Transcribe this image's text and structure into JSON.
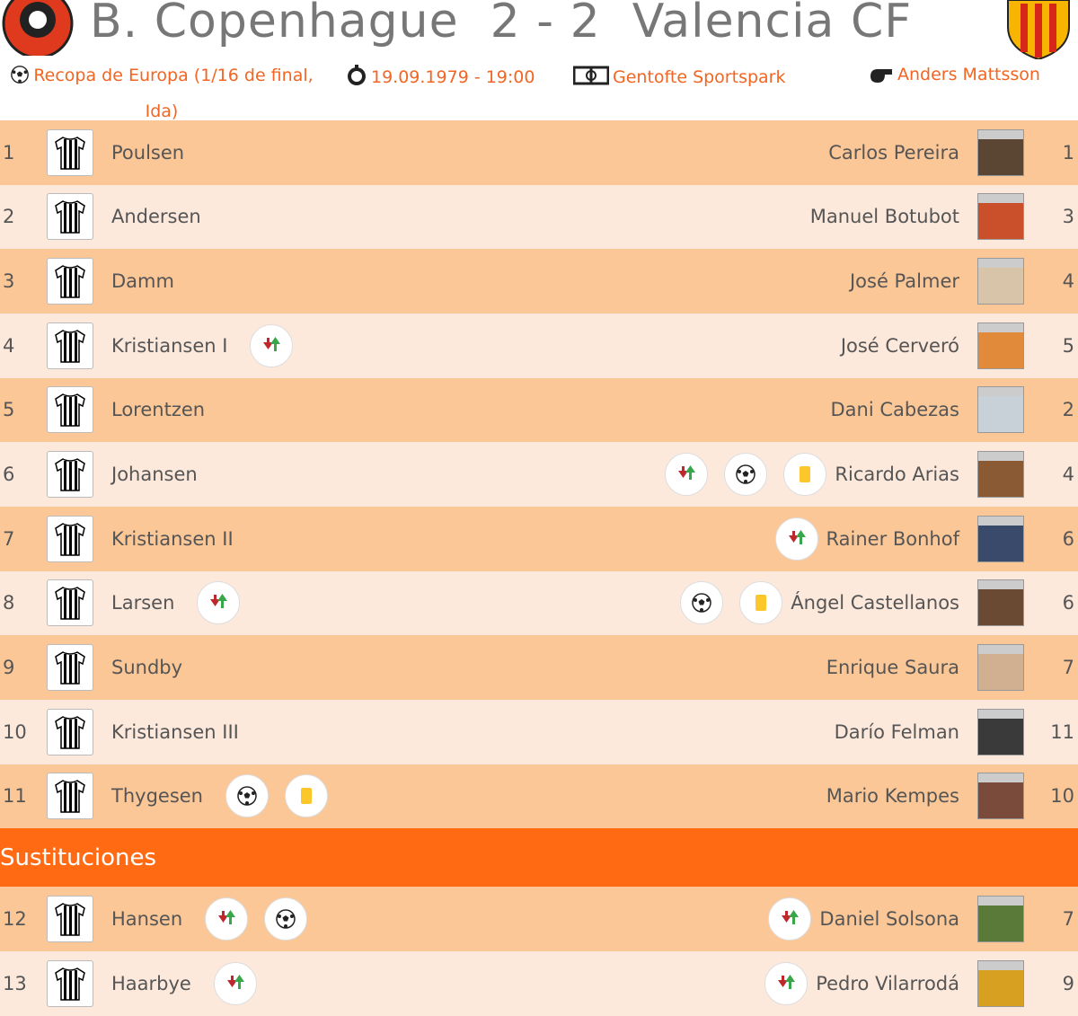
{
  "header": {
    "home_team": "B. Copenhague",
    "score": "2 - 2",
    "away_team": "Valencia CF",
    "competition": "Recopa de Europa (1/16 de final, Ida)",
    "date": "19.09.1979 - 19:00",
    "stadium": "Gentofte Sportspark",
    "referee": "Anders Mattsson"
  },
  "lineup": {
    "rows": [
      {
        "home_number": 1,
        "home_name": "Poulsen",
        "away_name": "Carlos Pereira",
        "away_number": 1
      },
      {
        "home_number": 2,
        "home_name": "Andersen",
        "away_name": "Manuel Botubot",
        "away_number": 3
      },
      {
        "home_number": 3,
        "home_name": "Damm",
        "away_name": "José Palmer",
        "away_number": 4
      },
      {
        "home_number": 4,
        "home_name": "Kristiansen I",
        "away_name": "José Cerveró",
        "away_number": 5
      },
      {
        "home_number": 5,
        "home_name": "Lorentzen",
        "away_name": "Dani Cabezas",
        "away_number": 2
      },
      {
        "home_number": 6,
        "home_name": "Johansen",
        "away_name": "Ricardo Arias",
        "away_number": 4
      },
      {
        "home_number": 7,
        "home_name": "Kristiansen II",
        "away_name": "Rainer Bonhof",
        "away_number": 6
      },
      {
        "home_number": 8,
        "home_name": "Larsen",
        "away_name": "Ángel Castellanos",
        "away_number": 6
      },
      {
        "home_number": 9,
        "home_name": "Sundby",
        "away_name": "Enrique Saura",
        "away_number": 7
      },
      {
        "home_number": 10,
        "home_name": "Kristiansen III",
        "away_name": "Darío Felman",
        "away_number": 11
      },
      {
        "home_number": 11,
        "home_name": "Thygesen",
        "away_name": "Mario Kempes",
        "away_number": 10
      }
    ]
  },
  "substitutes": {
    "title": "Sustituciones",
    "rows": [
      {
        "home_number": 12,
        "home_name": "Hansen",
        "away_name": "Daniel Solsona",
        "away_number": 7
      },
      {
        "home_number": 13,
        "home_name": "Haarbye",
        "away_name": "Pedro Vilarrodá",
        "away_number": 9
      }
    ]
  }
}
